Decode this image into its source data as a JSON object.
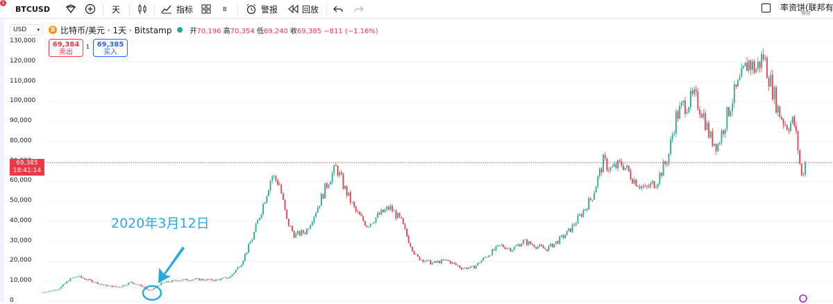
{
  "toolbar": {
    "notification_count": "1",
    "symbol": "BTCUSD",
    "interval": "天",
    "indicators_label": "指标",
    "layout_badge": "B",
    "alert_label": "警报",
    "replay_label": "回放"
  },
  "right_panel": {
    "title": "率资饼(联邦有...",
    "save_label": "保存"
  },
  "legend": {
    "currency_selector": "USD",
    "coin_glyph": "₿",
    "title": "比特币/美元 · 1天 · Bitstamp",
    "open_label": "开",
    "open": "70,196",
    "high_label": "高",
    "high": "70,354",
    "low_label": "低",
    "low": "69,240",
    "close_label": "收",
    "close": "69,385",
    "change": "−811 (−1.16%)"
  },
  "trade": {
    "sell_price": "69,384",
    "sell_label": "卖出",
    "spread": "1",
    "buy_price": "69,385",
    "buy_label": "买入"
  },
  "current_price": {
    "price": "69,385",
    "countdown": "18:41:14"
  },
  "annotation": {
    "text": "2020年3月12日"
  },
  "colors": {
    "up": "#22ab94",
    "down": "#f23645",
    "annotation": "#29a8e0",
    "buy": "#2962ff"
  },
  "chart_data": {
    "type": "candlestick",
    "yticks": [
      "130,000",
      "120,000",
      "110,000",
      "100,000",
      "90,000",
      "80,000",
      "70,000",
      "60,000",
      "50,000",
      "40,000",
      "30,000",
      "20,000",
      "10,000",
      "0"
    ],
    "ylim": [
      0,
      130000
    ],
    "current_price_line": 69385,
    "series": [
      {
        "t": 0,
        "v": 4500
      },
      {
        "t": 0.02,
        "v": 6000
      },
      {
        "t": 0.035,
        "v": 11000
      },
      {
        "t": 0.045,
        "v": 12500
      },
      {
        "t": 0.06,
        "v": 10500
      },
      {
        "t": 0.08,
        "v": 8000
      },
      {
        "t": 0.1,
        "v": 7000
      },
      {
        "t": 0.115,
        "v": 9500
      },
      {
        "t": 0.13,
        "v": 7500
      },
      {
        "t": 0.14,
        "v": 5000
      },
      {
        "t": 0.155,
        "v": 9000
      },
      {
        "t": 0.175,
        "v": 10500
      },
      {
        "t": 0.2,
        "v": 11000
      },
      {
        "t": 0.225,
        "v": 10500
      },
      {
        "t": 0.245,
        "v": 12000
      },
      {
        "t": 0.26,
        "v": 19000
      },
      {
        "t": 0.275,
        "v": 32000
      },
      {
        "t": 0.29,
        "v": 50000
      },
      {
        "t": 0.3,
        "v": 63000
      },
      {
        "t": 0.31,
        "v": 59000
      },
      {
        "t": 0.32,
        "v": 40000
      },
      {
        "t": 0.33,
        "v": 33000
      },
      {
        "t": 0.345,
        "v": 35000
      },
      {
        "t": 0.36,
        "v": 47000
      },
      {
        "t": 0.375,
        "v": 61000
      },
      {
        "t": 0.385,
        "v": 67000
      },
      {
        "t": 0.395,
        "v": 57000
      },
      {
        "t": 0.41,
        "v": 45000
      },
      {
        "t": 0.425,
        "v": 38000
      },
      {
        "t": 0.44,
        "v": 43000
      },
      {
        "t": 0.455,
        "v": 47000
      },
      {
        "t": 0.47,
        "v": 40000
      },
      {
        "t": 0.48,
        "v": 30000
      },
      {
        "t": 0.49,
        "v": 22000
      },
      {
        "t": 0.51,
        "v": 19000
      },
      {
        "t": 0.53,
        "v": 20500
      },
      {
        "t": 0.55,
        "v": 16500
      },
      {
        "t": 0.565,
        "v": 17000
      },
      {
        "t": 0.58,
        "v": 22000
      },
      {
        "t": 0.6,
        "v": 28000
      },
      {
        "t": 0.615,
        "v": 26000
      },
      {
        "t": 0.63,
        "v": 30000
      },
      {
        "t": 0.645,
        "v": 28000
      },
      {
        "t": 0.66,
        "v": 26000
      },
      {
        "t": 0.675,
        "v": 30000
      },
      {
        "t": 0.69,
        "v": 35000
      },
      {
        "t": 0.705,
        "v": 43000
      },
      {
        "t": 0.72,
        "v": 52000
      },
      {
        "t": 0.735,
        "v": 70000
      },
      {
        "t": 0.745,
        "v": 66000
      },
      {
        "t": 0.76,
        "v": 69000
      },
      {
        "t": 0.775,
        "v": 61000
      },
      {
        "t": 0.79,
        "v": 56000
      },
      {
        "t": 0.805,
        "v": 60000
      },
      {
        "t": 0.82,
        "v": 72000
      },
      {
        "t": 0.83,
        "v": 92000
      },
      {
        "t": 0.84,
        "v": 98000
      },
      {
        "t": 0.855,
        "v": 102000
      },
      {
        "t": 0.865,
        "v": 95000
      },
      {
        "t": 0.875,
        "v": 82000
      },
      {
        "t": 0.885,
        "v": 78000
      },
      {
        "t": 0.895,
        "v": 90000
      },
      {
        "t": 0.905,
        "v": 102000
      },
      {
        "t": 0.915,
        "v": 110000
      },
      {
        "t": 0.925,
        "v": 120000
      },
      {
        "t": 0.935,
        "v": 116000
      },
      {
        "t": 0.945,
        "v": 123000
      },
      {
        "t": 0.955,
        "v": 109000
      },
      {
        "t": 0.965,
        "v": 95000
      },
      {
        "t": 0.975,
        "v": 88000
      },
      {
        "t": 0.985,
        "v": 90000
      },
      {
        "t": 0.99,
        "v": 78000
      },
      {
        "t": 0.995,
        "v": 62000
      },
      {
        "t": 1,
        "v": 69385
      }
    ]
  }
}
